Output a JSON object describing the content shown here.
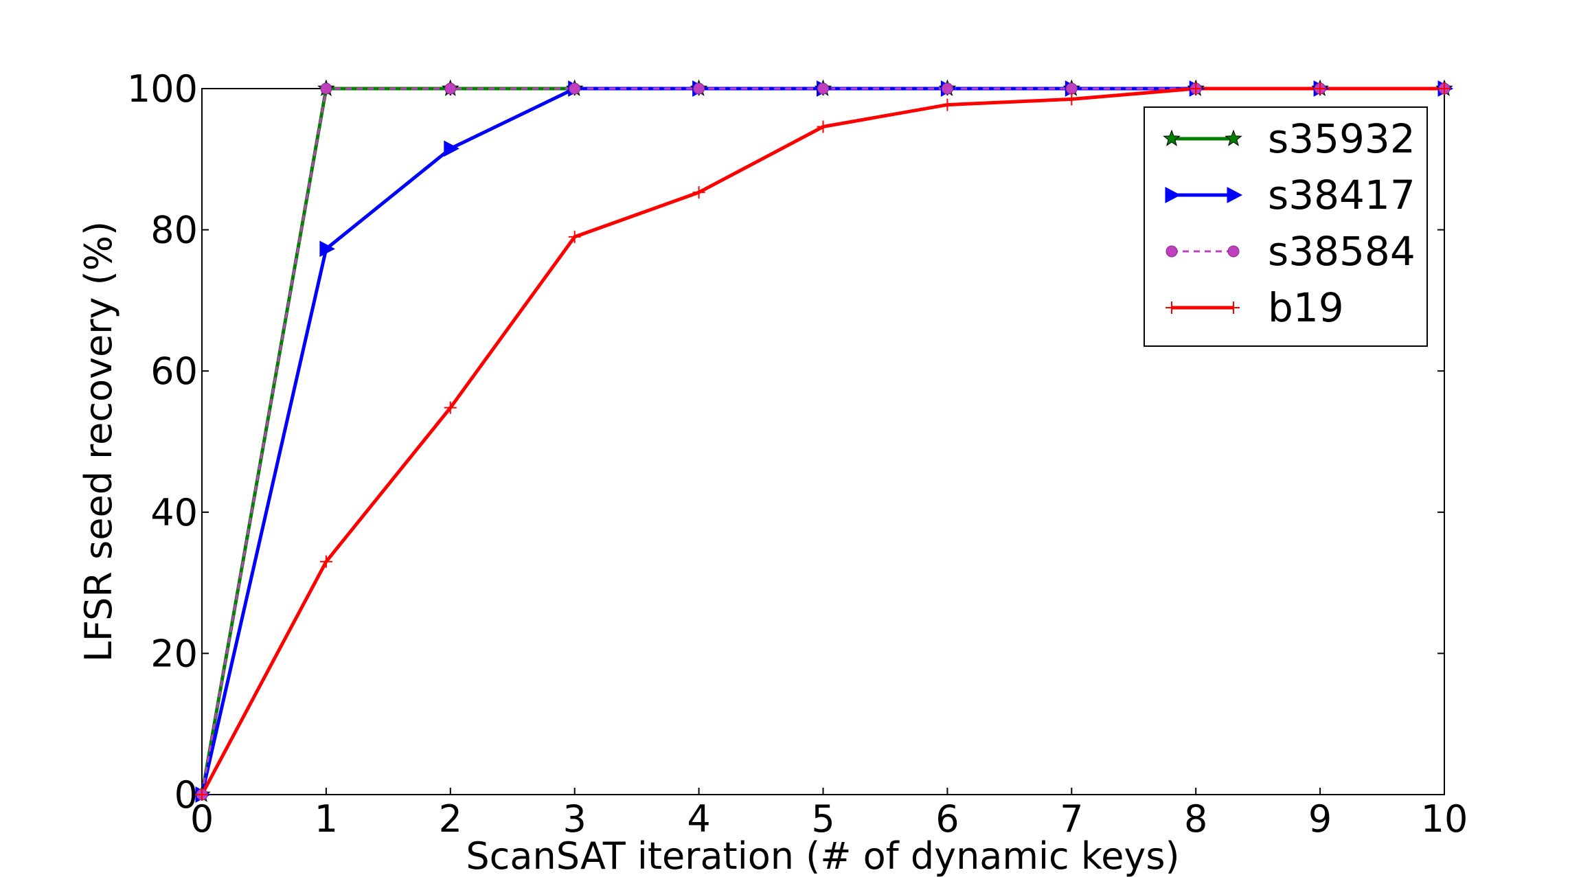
{
  "chart_data": {
    "type": "line",
    "title": "",
    "xlabel": "ScanSAT iteration (# of dynamic keys)",
    "ylabel": "LFSR seed recovery (%)",
    "xlim": [
      0,
      10
    ],
    "ylim": [
      0,
      100
    ],
    "xticks": [
      "0",
      "1",
      "2",
      "3",
      "4",
      "5",
      "6",
      "7",
      "8",
      "9",
      "10"
    ],
    "yticks": [
      "0",
      "20",
      "40",
      "60",
      "80",
      "100"
    ],
    "grid": false,
    "legend_position": "top-right",
    "x": [
      0,
      1,
      2,
      3,
      4,
      5,
      6,
      7,
      8,
      9,
      10
    ],
    "series": [
      {
        "name": "s35932",
        "color": "#008000",
        "marker": "star",
        "dash": "solid",
        "values": [
          0,
          100,
          100,
          100,
          100,
          100,
          100,
          100,
          100,
          100,
          100
        ]
      },
      {
        "name": "s38417",
        "color": "#0000ff",
        "marker": "triangle-right",
        "dash": "solid",
        "values": [
          0,
          77.3,
          91.5,
          100,
          100,
          100,
          100,
          100,
          100,
          100,
          100
        ]
      },
      {
        "name": "s38584",
        "color": "#bf40bf",
        "marker": "circle",
        "dash": "dashed",
        "values": [
          0,
          100,
          100,
          100,
          100,
          100,
          100,
          100,
          100,
          100,
          100
        ]
      },
      {
        "name": "b19",
        "color": "#ff0000",
        "marker": "plus",
        "dash": "solid",
        "values": [
          0,
          33,
          54.8,
          79,
          85.3,
          94.6,
          97.7,
          98.5,
          100,
          100,
          100
        ]
      }
    ]
  }
}
